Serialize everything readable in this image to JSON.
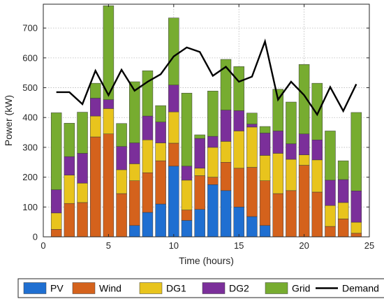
{
  "chart_data": {
    "type": "bar",
    "stacked": true,
    "xlabel": "Time (hours)",
    "ylabel": "Power (kW)",
    "xlim": [
      0,
      25
    ],
    "ylim": [
      0,
      780
    ],
    "xticks": [
      0,
      5,
      10,
      15,
      20,
      25
    ],
    "yticks": [
      0,
      100,
      200,
      300,
      400,
      500,
      600,
      700
    ],
    "grid": true,
    "legend_position": "bottom",
    "categories": [
      1,
      2,
      3,
      4,
      5,
      6,
      7,
      8,
      9,
      10,
      11,
      12,
      13,
      14,
      15,
      16,
      17,
      18,
      19,
      20,
      21,
      22,
      23,
      24
    ],
    "series": [
      {
        "name": "PV",
        "color": "#1f6fd1",
        "values": [
          0,
          0,
          0,
          0,
          0,
          0,
          38,
          82,
          110,
          237,
          55,
          92,
          175,
          155,
          100,
          68,
          38,
          0,
          0,
          0,
          0,
          0,
          0,
          0
        ]
      },
      {
        "name": "Wind",
        "color": "#d4621c",
        "values": [
          25,
          112,
          115,
          335,
          345,
          145,
          150,
          133,
          145,
          77,
          35,
          113,
          25,
          95,
          130,
          165,
          150,
          145,
          155,
          240,
          150,
          35,
          60,
          12
        ]
      },
      {
        "name": "DG1",
        "color": "#e8c41d",
        "values": [
          55,
          95,
          65,
          70,
          85,
          80,
          57,
          110,
          60,
          105,
          100,
          25,
          100,
          70,
          125,
          135,
          85,
          135,
          105,
          35,
          108,
          70,
          55,
          37
        ]
      },
      {
        "name": "DG2",
        "color": "#7b2f9a",
        "values": [
          78,
          62,
          100,
          60,
          30,
          78,
          70,
          80,
          70,
          90,
          47,
          100,
          37,
          105,
          68,
          10,
          75,
          75,
          52,
          70,
          67,
          85,
          77,
          105
        ]
      },
      {
        "name": "Grid",
        "color": "#77ac30",
        "values": [
          258,
          112,
          138,
          50,
          315,
          77,
          205,
          152,
          55,
          225,
          245,
          12,
          152,
          170,
          148,
          37,
          22,
          140,
          140,
          233,
          190,
          165,
          63,
          263
        ]
      }
    ],
    "lines": [
      {
        "name": "Demand",
        "color": "#000000",
        "values": [
          485,
          485,
          445,
          557,
          475,
          560,
          490,
          520,
          545,
          605,
          635,
          620,
          540,
          570,
          520,
          537,
          655,
          460,
          520,
          475,
          410,
          502,
          422,
          512
        ]
      }
    ]
  }
}
